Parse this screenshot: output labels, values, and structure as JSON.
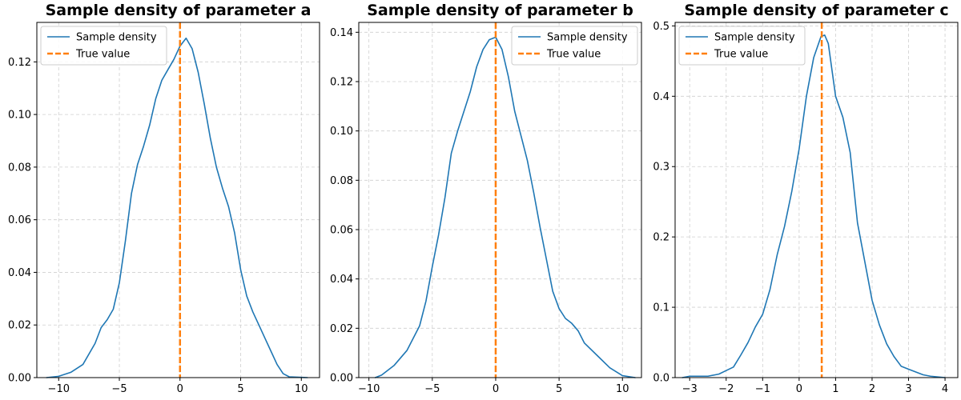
{
  "chart_data": [
    {
      "type": "line",
      "title": "Sample density of parameter a",
      "xlim": [
        -11.8,
        11.5
      ],
      "ylim": [
        0,
        0.135
      ],
      "xticks": [
        -10,
        -5,
        0,
        5,
        10
      ],
      "xtick_labels": [
        "−10",
        "−5",
        "0",
        "5",
        "10"
      ],
      "yticks": [
        0,
        0.02,
        0.04,
        0.06,
        0.08,
        0.1,
        0.12
      ],
      "ytick_labels": [
        "0.00",
        "0.02",
        "0.04",
        "0.06",
        "0.08",
        "0.10",
        "0.12"
      ],
      "grid": true,
      "legend_position": "upper-left",
      "true_value": 0,
      "series": [
        {
          "name": "Sample density",
          "color": "#1f77b4",
          "x": [
            -11,
            -10,
            -9,
            -8,
            -7,
            -6.5,
            -6,
            -5.5,
            -5,
            -4.5,
            -4,
            -3.5,
            -3,
            -2.5,
            -2,
            -1.5,
            -1,
            -0.5,
            0,
            0.5,
            1,
            1.5,
            2,
            2.5,
            3,
            3.5,
            4,
            4.5,
            5,
            5.5,
            6,
            6.5,
            7,
            7.5,
            8,
            8.5,
            9,
            10,
            10.5
          ],
          "y": [
            0,
            0.0005,
            0.002,
            0.005,
            0.013,
            0.019,
            0.022,
            0.026,
            0.036,
            0.052,
            0.07,
            0.081,
            0.088,
            0.096,
            0.106,
            0.113,
            0.117,
            0.121,
            0.126,
            0.129,
            0.125,
            0.116,
            0.104,
            0.091,
            0.08,
            0.072,
            0.065,
            0.055,
            0.041,
            0.031,
            0.025,
            0.02,
            0.015,
            0.01,
            0.005,
            0.0015,
            0.0003,
            0.0001,
            0
          ]
        }
      ]
    },
    {
      "type": "line",
      "title": "Sample density of parameter b",
      "xlim": [
        -10.8,
        11.5
      ],
      "ylim": [
        0,
        0.144
      ],
      "xticks": [
        -10,
        -5,
        0,
        5,
        10
      ],
      "xtick_labels": [
        "−10",
        "−5",
        "0",
        "5",
        "10"
      ],
      "yticks": [
        0,
        0.02,
        0.04,
        0.06,
        0.08,
        0.1,
        0.12,
        0.14
      ],
      "ytick_labels": [
        "0.00",
        "0.02",
        "0.04",
        "0.06",
        "0.08",
        "0.10",
        "0.12",
        "0.14"
      ],
      "grid": true,
      "legend_position": "upper-right",
      "true_value": 0,
      "series": [
        {
          "name": "Sample density",
          "color": "#1f77b4",
          "x": [
            -9.5,
            -9,
            -8,
            -7,
            -6,
            -5.5,
            -5,
            -4.5,
            -4,
            -3.5,
            -3,
            -2.5,
            -2,
            -1.5,
            -1,
            -0.5,
            0,
            0.5,
            1,
            1.5,
            2,
            2.5,
            3,
            3.5,
            4,
            4.5,
            5,
            5.5,
            6,
            6.5,
            7,
            8,
            9,
            10,
            11
          ],
          "y": [
            0,
            0.001,
            0.005,
            0.011,
            0.021,
            0.031,
            0.045,
            0.058,
            0.073,
            0.091,
            0.1,
            0.108,
            0.116,
            0.126,
            0.133,
            0.137,
            0.138,
            0.133,
            0.122,
            0.108,
            0.098,
            0.088,
            0.075,
            0.061,
            0.048,
            0.035,
            0.028,
            0.024,
            0.022,
            0.019,
            0.014,
            0.009,
            0.004,
            0.0008,
            0
          ]
        }
      ]
    },
    {
      "type": "line",
      "title": "Sample density of parameter c",
      "xlim": [
        -3.4,
        4.35
      ],
      "ylim": [
        0,
        0.505
      ],
      "xticks": [
        -3,
        -2,
        -1,
        0,
        1,
        2,
        3,
        4
      ],
      "xtick_labels": [
        "−3",
        "−2",
        "−1",
        "0",
        "1",
        "2",
        "3",
        "4"
      ],
      "yticks": [
        0,
        0.1,
        0.2,
        0.3,
        0.4,
        0.5
      ],
      "ytick_labels": [
        "0.0",
        "0.1",
        "0.2",
        "0.3",
        "0.4",
        "0.5"
      ],
      "grid": true,
      "legend_position": "upper-left",
      "true_value": 0.62,
      "series": [
        {
          "name": "Sample density",
          "color": "#1f77b4",
          "x": [
            -3.2,
            -3,
            -2.5,
            -2.2,
            -2,
            -1.8,
            -1.6,
            -1.4,
            -1.2,
            -1,
            -0.8,
            -0.6,
            -0.5,
            -0.4,
            -0.2,
            0,
            0.2,
            0.4,
            0.6,
            0.7,
            0.8,
            1,
            1.2,
            1.4,
            1.6,
            1.8,
            2,
            2.2,
            2.4,
            2.6,
            2.8,
            3,
            3.2,
            3.4,
            3.6,
            4
          ],
          "y": [
            0,
            0.002,
            0.002,
            0.005,
            0.01,
            0.015,
            0.032,
            0.05,
            0.072,
            0.09,
            0.125,
            0.175,
            0.195,
            0.215,
            0.265,
            0.325,
            0.4,
            0.455,
            0.485,
            0.487,
            0.475,
            0.4,
            0.37,
            0.32,
            0.22,
            0.165,
            0.11,
            0.075,
            0.048,
            0.03,
            0.016,
            0.012,
            0.008,
            0.004,
            0.002,
            0
          ]
        }
      ]
    }
  ],
  "legend": {
    "density_label": "Sample density",
    "true_label": "True value",
    "density_color": "#1f77b4",
    "true_color": "#ff7f0e"
  }
}
